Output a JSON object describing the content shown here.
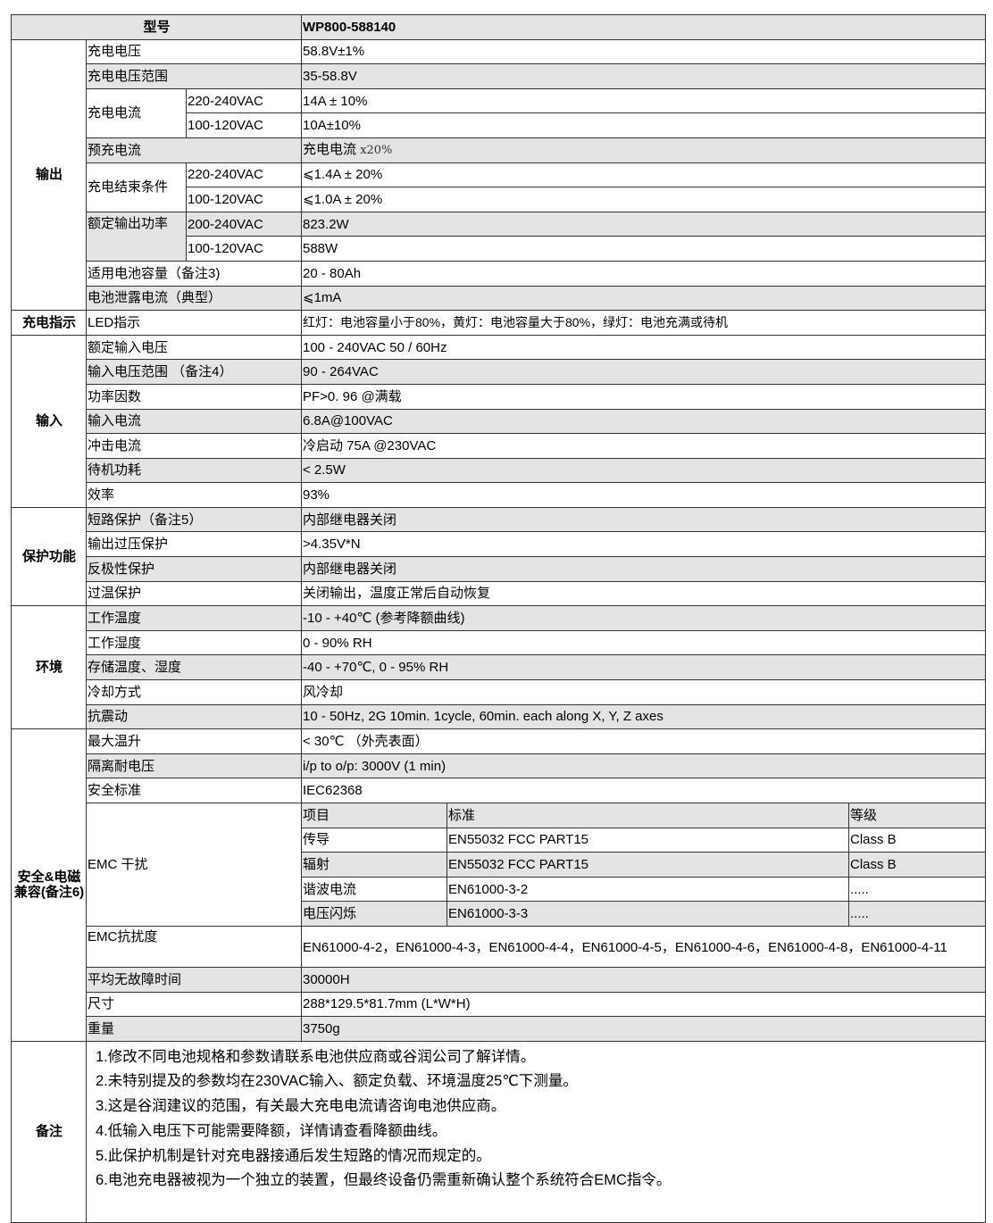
{
  "header": {
    "label": "型号",
    "model": "WP800-588140"
  },
  "output": {
    "group": "输出",
    "charge_voltage": {
      "label": "充电电压",
      "value": "58.8V±1%"
    },
    "charge_voltage_range": {
      "label": "充电电压范围",
      "value": "35-58.8V"
    },
    "charge_current": {
      "label": "充电电流",
      "rows": [
        {
          "cond": "220-240VAC",
          "value": "14A ± 10%"
        },
        {
          "cond": "100-120VAC",
          "value": "10A±10%"
        }
      ]
    },
    "precharge_current": {
      "label": "预充电流",
      "value": "充电电流",
      "suffix": "x20%"
    },
    "end_condition": {
      "label": "充电结束条件",
      "rows": [
        {
          "cond": "220-240VAC",
          "value": "⩽1.4A ± 20%"
        },
        {
          "cond": "100-120VAC",
          "value": "⩽1.0A ± 20%"
        }
      ]
    },
    "rated_power": {
      "label": "额定输出功率",
      "rows": [
        {
          "cond": "200-240VAC",
          "value": "823.2W"
        },
        {
          "cond": "100-120VAC",
          "value": "588W"
        }
      ]
    },
    "battery_capacity": {
      "label": "适用电池容量（备注3)",
      "value": "20 - 80Ah"
    },
    "leakage_current": {
      "label": "电池泄露电流（典型）",
      "value": "⩽1mA"
    }
  },
  "indicator": {
    "group": "充电指示",
    "label": "LED指示",
    "value": "红灯：电池容量小于80%，黄灯：电池容量大于80%，绿灯：电池充满或待机"
  },
  "input": {
    "group": "输入",
    "rows": [
      {
        "label": "额定输入电压",
        "value": "100 - 240VAC  50 / 60Hz"
      },
      {
        "label": "输入电压范围 （备注4）",
        "value": "90 - 264VAC"
      },
      {
        "label": "功率因数",
        "value": "PF>0. 96  @满载"
      },
      {
        "label": "输入电流",
        "value": "6.8A@100VAC"
      },
      {
        "label": "冲击电流",
        "value": "冷启动 75A @230VAC"
      },
      {
        "label": "待机功耗",
        "value": "< 2.5W"
      },
      {
        "label": "效率",
        "value": "93%"
      }
    ]
  },
  "protection": {
    "group": "保护功能",
    "rows": [
      {
        "label": "短路保护（备注5）",
        "value": "内部继电器关闭"
      },
      {
        "label": "输出过压保护",
        "value": ">4.35V*N"
      },
      {
        "label": "反极性保护",
        "value": "内部继电器关闭"
      },
      {
        "label": "过温保护",
        "value": "关闭输出，温度正常后自动恢复"
      }
    ]
  },
  "environment": {
    "group": "环境",
    "rows": [
      {
        "label": "工作温度",
        "value": "-10 - +40℃ (参考降额曲线)"
      },
      {
        "label": "工作湿度",
        "value": "0 - 90% RH"
      },
      {
        "label": "存储温度、湿度",
        "value": "-40 - +70℃, 0 - 95% RH"
      },
      {
        "label": "冷却方式",
        "value": "风冷却"
      },
      {
        "label": "抗震动",
        "value": "10 - 50Hz, 2G 10min. 1cycle, 60min. each along X, Y, Z axes"
      }
    ]
  },
  "safety": {
    "group": "安全&电磁兼容(备注6)",
    "max_temp_rise": {
      "label": "最大温升",
      "value": "< 30℃ （外壳表面）"
    },
    "withstand_voltage": {
      "label": "隔离耐电压",
      "value": "i/p to o/p: 3000V (1 min)"
    },
    "safety_standard": {
      "label": "安全标准",
      "value": "IEC62368"
    },
    "emc_interference": {
      "label": "EMC 干扰",
      "columns": [
        "项目",
        "标准",
        "等级"
      ],
      "rows": [
        {
          "item": "传导",
          "standard": "EN55032   FCC PART15",
          "class": "Class B"
        },
        {
          "item": "辐射",
          "standard": "EN55032   FCC PART15",
          "class": "Class B"
        },
        {
          "item": "谐波电流",
          "standard": "EN61000-3-2",
          "class": "....."
        },
        {
          "item": "电压闪烁",
          "standard": "EN61000-3-3",
          "class": "....."
        }
      ]
    },
    "emc_immunity": {
      "label": "EMC抗扰度",
      "value": "EN61000-4-2，EN61000-4-3，EN61000-4-4，EN61000-4-5，EN61000-4-6，EN61000-4-8，EN61000-4-11"
    },
    "mtbf": {
      "label": "平均无故障时间",
      "value": "30000H"
    },
    "dimensions": {
      "label": "尺寸",
      "value": "288*129.5*81.7mm (L*W*H)"
    },
    "weight": {
      "label": "重量",
      "value": "3750g"
    }
  },
  "notes": {
    "group": "备注",
    "items": [
      "1.修改不同电池规格和参数请联系电池供应商或谷润公司了解详情。",
      "2.未特别提及的参数均在230VAC输入、额定负载、环境温度25℃下测量。",
      "3.这是谷润建议的范围，有关最大充电电流请咨询电池供应商。",
      "4.低输入电压下可能需要降额，详情请查看降额曲线。",
      "5.此保护机制是针对充电器接通后发生短路的情况而规定的。",
      "6.电池充电器被视为一个独立的装置，但最终设备仍需重新确认整个系统符合EMC指令。"
    ]
  }
}
